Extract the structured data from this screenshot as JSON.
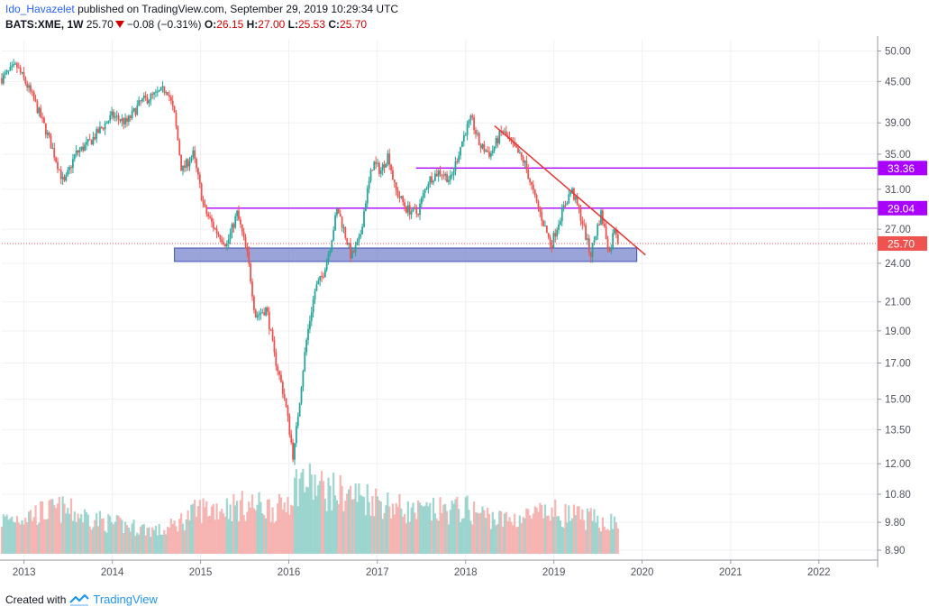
{
  "header": {
    "author": "Ido_Havazelet",
    "published_text": "published on TradingView.com, September 29, 2019 10:29:34 UTC",
    "symbol": "BATS:XME, 1W",
    "last": "25.70",
    "change": "−0.08 (−0.31%)",
    "o_label": "O:",
    "o_value": "26.15",
    "h_label": "H:",
    "h_value": "27.00",
    "l_label": "L:",
    "l_value": "25.53",
    "c_label": "C:",
    "c_value": "25.70"
  },
  "footer": {
    "created_with": "Created with",
    "brand": "TradingView"
  },
  "colors": {
    "up": "#26a69a",
    "down": "#ef5350",
    "up_volume": "#8ecfc8",
    "down_volume": "#f5a9a7",
    "support_zone_fill": "#7986cb",
    "support_zone_stroke": "#3f51b5",
    "resistance_line": "#aa00ff",
    "trend_line": "#e53935",
    "last_price_label": "#ef5350",
    "grid": "#eef0f3"
  },
  "chart_data": {
    "type": "candlestick",
    "title": "",
    "xlabel": "",
    "ylabel": "",
    "scale": "log",
    "ylim": [
      8.6,
      52
    ],
    "xlim": [
      "2012-10-01",
      "2022-09-01"
    ],
    "x_ticks": [
      "2013",
      "2014",
      "2015",
      "2016",
      "2017",
      "2018",
      "2019",
      "2020",
      "2021",
      "2022"
    ],
    "y_ticks": [
      "50.00",
      "45.00",
      "39.00",
      "35.00",
      "31.00",
      "27.00",
      "24.00",
      "21.00",
      "19.00",
      "17.00",
      "15.00",
      "13.50",
      "12.00",
      "10.80",
      "9.80",
      "8.90"
    ],
    "grid": true,
    "price_path": [
      [
        "2012-10-01",
        45.5
      ],
      [
        "2012-12-01",
        47.5
      ],
      [
        "2013-02-01",
        43
      ],
      [
        "2013-04-01",
        38
      ],
      [
        "2013-06-15",
        31.5
      ],
      [
        "2013-08-01",
        35
      ],
      [
        "2013-10-01",
        36.5
      ],
      [
        "2014-01-01",
        40
      ],
      [
        "2014-03-01",
        39
      ],
      [
        "2014-05-01",
        42
      ],
      [
        "2014-07-01",
        43
      ],
      [
        "2014-08-15",
        44
      ],
      [
        "2014-09-15",
        40
      ],
      [
        "2014-10-15",
        33
      ],
      [
        "2014-12-01",
        35
      ],
      [
        "2015-01-15",
        29
      ],
      [
        "2015-03-01",
        27
      ],
      [
        "2015-04-20",
        25.6
      ],
      [
        "2015-06-01",
        28.5
      ],
      [
        "2015-07-15",
        24.5
      ],
      [
        "2015-08-15",
        20
      ],
      [
        "2015-10-01",
        20.5
      ],
      [
        "2015-11-01",
        17.5
      ],
      [
        "2015-12-15",
        15
      ],
      [
        "2016-01-20",
        12.2
      ],
      [
        "2016-02-15",
        15
      ],
      [
        "2016-03-15",
        18.5
      ],
      [
        "2016-04-20",
        22
      ],
      [
        "2016-05-20",
        23
      ],
      [
        "2016-06-20",
        25.5
      ],
      [
        "2016-07-20",
        29
      ],
      [
        "2016-08-15",
        27
      ],
      [
        "2016-09-15",
        24.5
      ],
      [
        "2016-10-20",
        26
      ],
      [
        "2016-11-15",
        30
      ],
      [
        "2016-12-15",
        34
      ],
      [
        "2017-01-15",
        33
      ],
      [
        "2017-02-15",
        35
      ],
      [
        "2017-03-15",
        31
      ],
      [
        "2017-05-01",
        29
      ],
      [
        "2017-06-15",
        28.5
      ],
      [
        "2017-08-01",
        32
      ],
      [
        "2017-09-15",
        33
      ],
      [
        "2017-11-01",
        32
      ],
      [
        "2018-01-01",
        38
      ],
      [
        "2018-01-25",
        39.5
      ],
      [
        "2018-03-01",
        36
      ],
      [
        "2018-04-15",
        35
      ],
      [
        "2018-06-01",
        38
      ],
      [
        "2018-07-15",
        36
      ],
      [
        "2018-09-01",
        34
      ],
      [
        "2018-10-15",
        30
      ],
      [
        "2018-12-20",
        25.5
      ],
      [
        "2019-02-01",
        28.5
      ],
      [
        "2019-03-15",
        31
      ],
      [
        "2019-05-01",
        27.5
      ],
      [
        "2019-06-01",
        24.6
      ],
      [
        "2019-07-15",
        28.5
      ],
      [
        "2019-08-20",
        24.8
      ],
      [
        "2019-09-10",
        27.4
      ],
      [
        "2019-09-27",
        25.7
      ]
    ],
    "volume_path": [
      [
        "2012-10-01",
        0.45
      ],
      [
        "2013-06-01",
        0.6
      ],
      [
        "2014-01-01",
        0.4
      ],
      [
        "2014-08-01",
        0.3
      ],
      [
        "2015-01-01",
        0.6
      ],
      [
        "2015-08-01",
        0.65
      ],
      [
        "2015-12-01",
        0.6
      ],
      [
        "2016-02-15",
        1.0
      ],
      [
        "2016-06-01",
        0.85
      ],
      [
        "2016-12-01",
        0.75
      ],
      [
        "2017-06-01",
        0.55
      ],
      [
        "2018-01-01",
        0.6
      ],
      [
        "2018-06-01",
        0.45
      ],
      [
        "2019-01-01",
        0.55
      ],
      [
        "2019-09-27",
        0.4
      ]
    ],
    "annotations": {
      "support_zone": {
        "x_start": "2014-09-15",
        "x_end": "2019-12-10",
        "y_low": 24.15,
        "y_high": 25.3
      },
      "horizontal_lines": [
        {
          "value": 29.04,
          "label": "29.04",
          "x_start": "2015-01-25"
        },
        {
          "value": 33.36,
          "label": "33.36",
          "x_start": "2017-06-10"
        }
      ],
      "trend_line": {
        "x1": "2018-05-01",
        "y1": 38.6,
        "x2": "2020-01-15",
        "y2": 24.7
      },
      "last_price": {
        "value": 25.7,
        "label": "25.70"
      }
    }
  }
}
